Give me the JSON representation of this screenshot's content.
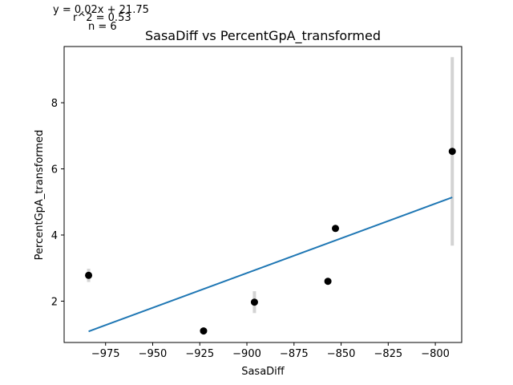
{
  "chart_data": {
    "type": "scatter",
    "title": "SasaDiff vs PercentGpA_transformed",
    "xlabel": "SasaDiff",
    "ylabel": "PercentGpA_transformed",
    "xlim": [
      -997,
      -786
    ],
    "ylim": [
      0.75,
      9.7
    ],
    "xticks": [
      -975,
      -950,
      -925,
      -900,
      -875,
      -850,
      -825,
      -800
    ],
    "xtick_labels": [
      "−975",
      "−950",
      "−925",
      "−900",
      "−875",
      "−850",
      "−825",
      "−800"
    ],
    "yticks": [
      2,
      4,
      6,
      8
    ],
    "ytick_labels": [
      "2",
      "4",
      "6",
      "8"
    ],
    "grid": false,
    "points": [
      {
        "x": -984,
        "y": 2.78,
        "err": 0.2
      },
      {
        "x": -923,
        "y": 1.1,
        "err": 0
      },
      {
        "x": -896,
        "y": 1.97,
        "err": 0.33
      },
      {
        "x": -857,
        "y": 2.6,
        "err": 0
      },
      {
        "x": -853,
        "y": 4.2,
        "err": 0
      },
      {
        "x": -791,
        "y": 6.53,
        "err": 2.85
      }
    ],
    "fit_line": {
      "slope": 0.021,
      "intercept": 21.75
    },
    "annotations": [
      "y = 0.02x + 21.75",
      "r^2 = 0.53",
      "n = 6"
    ],
    "colors": {
      "points": "#000000",
      "fit_line": "#1f77b4",
      "error_bars": "#d3d3d3"
    }
  }
}
